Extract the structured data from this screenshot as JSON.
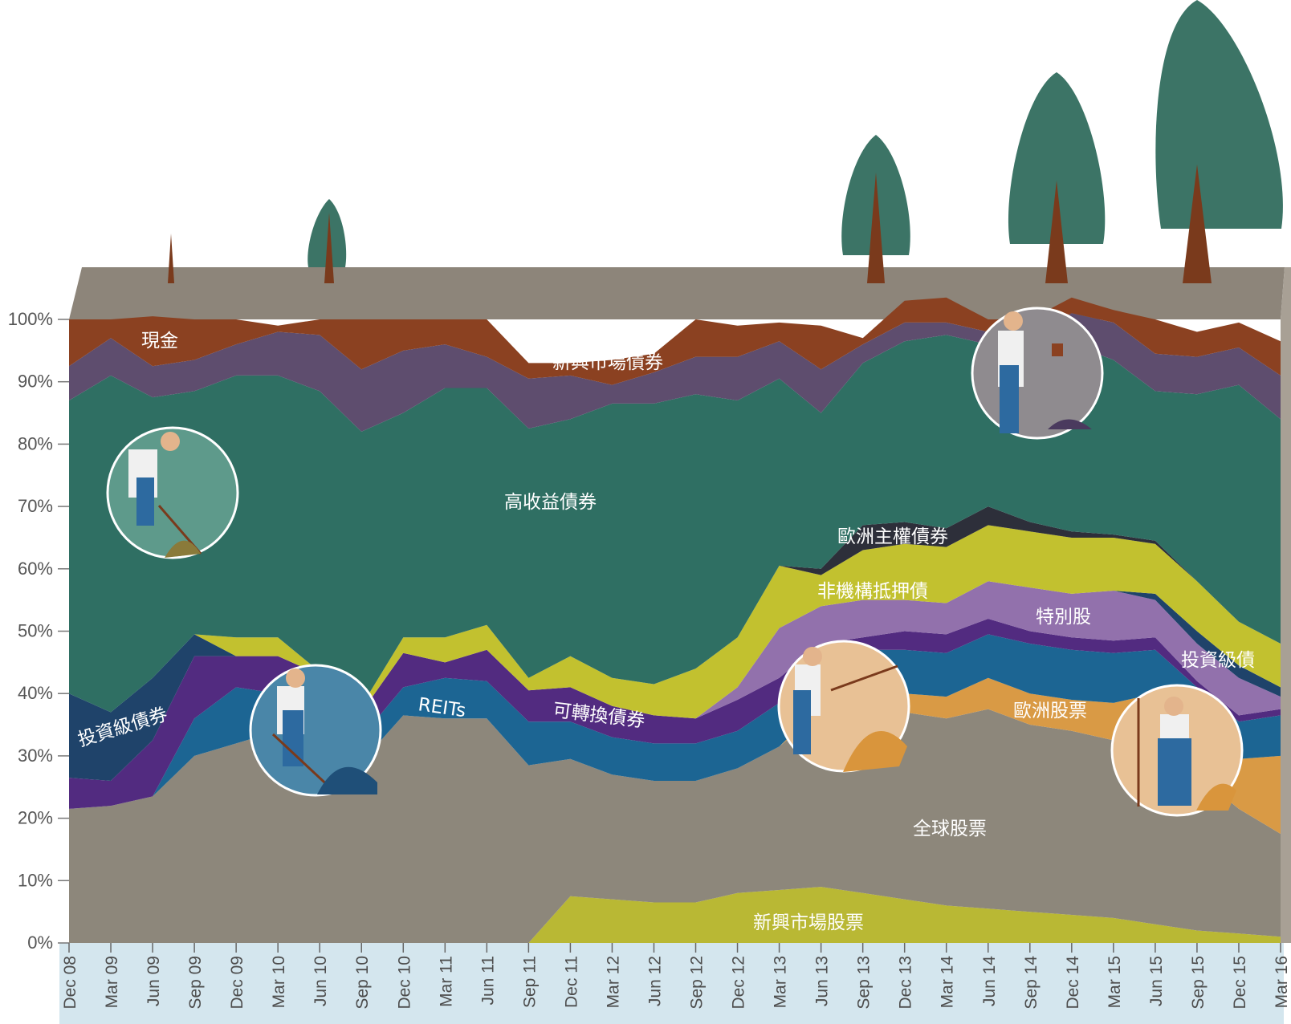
{
  "chart_data": {
    "type": "area",
    "stacked": true,
    "percent": true,
    "x": [
      "Dec 08",
      "Mar 09",
      "Jun 09",
      "Sep 09",
      "Dec 09",
      "Mar 10",
      "Jun 10",
      "Sep 10",
      "Dec 10",
      "Mar 11",
      "Jun 11",
      "Sep 11",
      "Dec 11",
      "Mar 12",
      "Jun 12",
      "Sep 12",
      "Dec 12",
      "Mar 13",
      "Jun 13",
      "Sep 13",
      "Dec 13",
      "Mar 14",
      "Jun 14",
      "Sep 14",
      "Dec 14",
      "Mar 15",
      "Jun 15",
      "Sep 15",
      "Dec 15",
      "Mar 16"
    ],
    "ylim": [
      0,
      100
    ],
    "yticks": [
      "0%",
      "10%",
      "20%",
      "30%",
      "40%",
      "50%",
      "60%",
      "70%",
      "80%",
      "90%",
      "100%"
    ],
    "series": [
      {
        "name": "新興市場股票",
        "color": "#b9b834",
        "values": [
          0,
          0,
          0,
          0,
          0,
          0,
          0,
          0,
          0,
          0,
          0,
          0,
          7.5,
          7,
          6.5,
          6.5,
          8,
          8.5,
          9,
          8,
          7,
          6,
          5.5,
          5,
          4.5,
          4,
          3,
          2,
          1.5,
          1
        ]
      },
      {
        "name": "全球股票",
        "color": "#8d877b",
        "values": [
          21.5,
          22,
          23.5,
          30,
          32,
          34,
          31,
          29,
          36.5,
          36,
          36,
          28.5,
          22,
          20,
          19.5,
          19.5,
          20,
          23,
          28,
          30,
          30,
          30,
          32,
          30,
          29.5,
          28.5,
          31,
          25,
          20,
          16.5
        ]
      },
      {
        "name": "歐洲股票",
        "color": "#d99a45",
        "values": [
          0,
          0,
          0,
          0,
          0,
          0,
          0,
          0,
          0,
          0,
          0,
          0,
          0,
          0,
          0,
          0,
          0,
          0,
          1,
          2,
          3,
          3.5,
          5,
          5,
          5,
          6,
          6,
          7,
          8,
          12.5
        ]
      },
      {
        "name": "REITs",
        "color": "#1c6593",
        "values": [
          0,
          0,
          0,
          6,
          9,
          6,
          6.5,
          4,
          4.5,
          6.5,
          6,
          7,
          6,
          6,
          6,
          6,
          6,
          7,
          7,
          7,
          7,
          7,
          7,
          8,
          8,
          8,
          7,
          7,
          6,
          6.5
        ]
      },
      {
        "name": "可轉換債券",
        "color": "#522b80",
        "values": [
          5,
          4,
          9,
          10,
          5,
          6,
          5.5,
          4,
          5.5,
          2.5,
          5,
          5,
          5.5,
          5,
          4.5,
          4,
          5,
          4,
          3,
          2,
          3,
          3,
          2.5,
          2,
          2,
          2,
          2,
          1,
          1,
          1
        ]
      },
      {
        "name": "投資級債券",
        "color": "#1f436a",
        "values": [
          13.5,
          11,
          10,
          3.5,
          0,
          0,
          0,
          0,
          0,
          0,
          0,
          0,
          0,
          0,
          0,
          0,
          0,
          0,
          0,
          0,
          0,
          0,
          0,
          0,
          0,
          0,
          0,
          0,
          0,
          0
        ]
      },
      {
        "name": "特別股",
        "color": "#9271ac",
        "values": [
          0,
          0,
          0,
          0,
          0,
          0,
          0,
          0,
          0,
          0,
          0,
          0,
          0,
          0,
          0,
          0,
          2,
          8,
          6,
          6,
          5,
          5,
          6,
          7,
          7,
          8,
          6,
          6,
          6,
          2
        ]
      },
      {
        "name": "投資級債",
        "color": "#1f436a",
        "values": [
          0,
          0,
          0,
          0,
          0,
          0,
          0,
          0,
          0,
          0,
          0,
          0,
          0,
          0,
          0,
          0,
          0,
          0,
          0,
          0,
          0,
          0,
          0,
          0,
          0,
          0,
          1,
          2,
          2,
          1.5
        ]
      },
      {
        "name": "非機構抵押債",
        "color": "#c2c12f",
        "values": [
          0,
          0,
          0,
          0,
          3,
          3,
          0.5,
          1,
          2.5,
          4,
          4,
          2,
          5,
          4.5,
          5,
          8,
          8,
          10,
          5,
          8,
          9,
          9,
          9,
          9,
          9,
          8.5,
          8,
          8,
          7,
          7
        ]
      },
      {
        "name": "歐洲主權債券",
        "color": "#2d2f3a",
        "values": [
          0,
          0,
          0,
          0,
          0,
          0,
          0,
          0,
          0,
          0,
          0,
          0,
          0,
          0,
          0,
          0,
          0,
          0,
          1,
          4,
          3.5,
          3,
          3,
          1.5,
          1,
          0.5,
          0.5,
          0,
          0,
          0
        ]
      },
      {
        "name": "高收益債券",
        "color": "#2f6f63",
        "values": [
          47,
          54,
          45,
          39,
          42,
          42,
          45,
          44,
          36,
          40,
          38,
          40,
          38,
          44,
          45,
          44,
          38,
          30,
          25,
          26,
          29,
          31,
          26,
          27,
          30,
          28,
          24,
          30,
          38,
          36
        ]
      },
      {
        "name": "新興市場債券",
        "color": "#5e4d6e",
        "values": [
          5.5,
          6,
          5,
          5,
          5,
          7,
          9,
          10,
          10,
          7,
          5,
          8,
          7,
          3,
          5,
          6,
          7,
          6,
          7,
          3,
          3,
          2,
          2,
          3,
          5,
          6,
          6,
          6,
          6,
          7
        ]
      },
      {
        "name": "現金",
        "color": "#8b4121",
        "values": [
          7.5,
          3,
          8,
          6.5,
          4,
          1,
          2.5,
          8,
          5,
          4,
          6,
          2.5,
          2,
          4,
          3,
          6,
          5,
          3,
          7,
          1,
          3.5,
          4,
          2,
          2.5,
          2.5,
          2,
          5.5,
          4,
          4,
          5.5
        ]
      }
    ]
  },
  "labels": {
    "cash": "現金",
    "em_bonds": "新興市場債券",
    "high_yield": "高收益債券",
    "eu_sovereign": "歐洲主權債券",
    "non_agency": "非機構抵押債",
    "preferred": "特別股",
    "ig_bonds_right": "投資級債",
    "ig_bonds_left": "投資級債券",
    "reits": "REITs",
    "convertible": "可轉換債券",
    "eu_equity": "歐洲股票",
    "global_equity": "全球股票",
    "em_equity": "新興市場股票"
  },
  "colors": {
    "ground_top": "#8d857a",
    "x_axis_band": "#d4e6ee",
    "tree_foliage": "#3c7466",
    "tree_trunk": "#7a3a1c"
  },
  "illustration_icons": [
    "farmer-raking-icon",
    "farmer-raking-icon",
    "farmer-watering-icon",
    "farmer-pointing-icon",
    "farmer-pitchfork-icon",
    "tree-icon"
  ]
}
